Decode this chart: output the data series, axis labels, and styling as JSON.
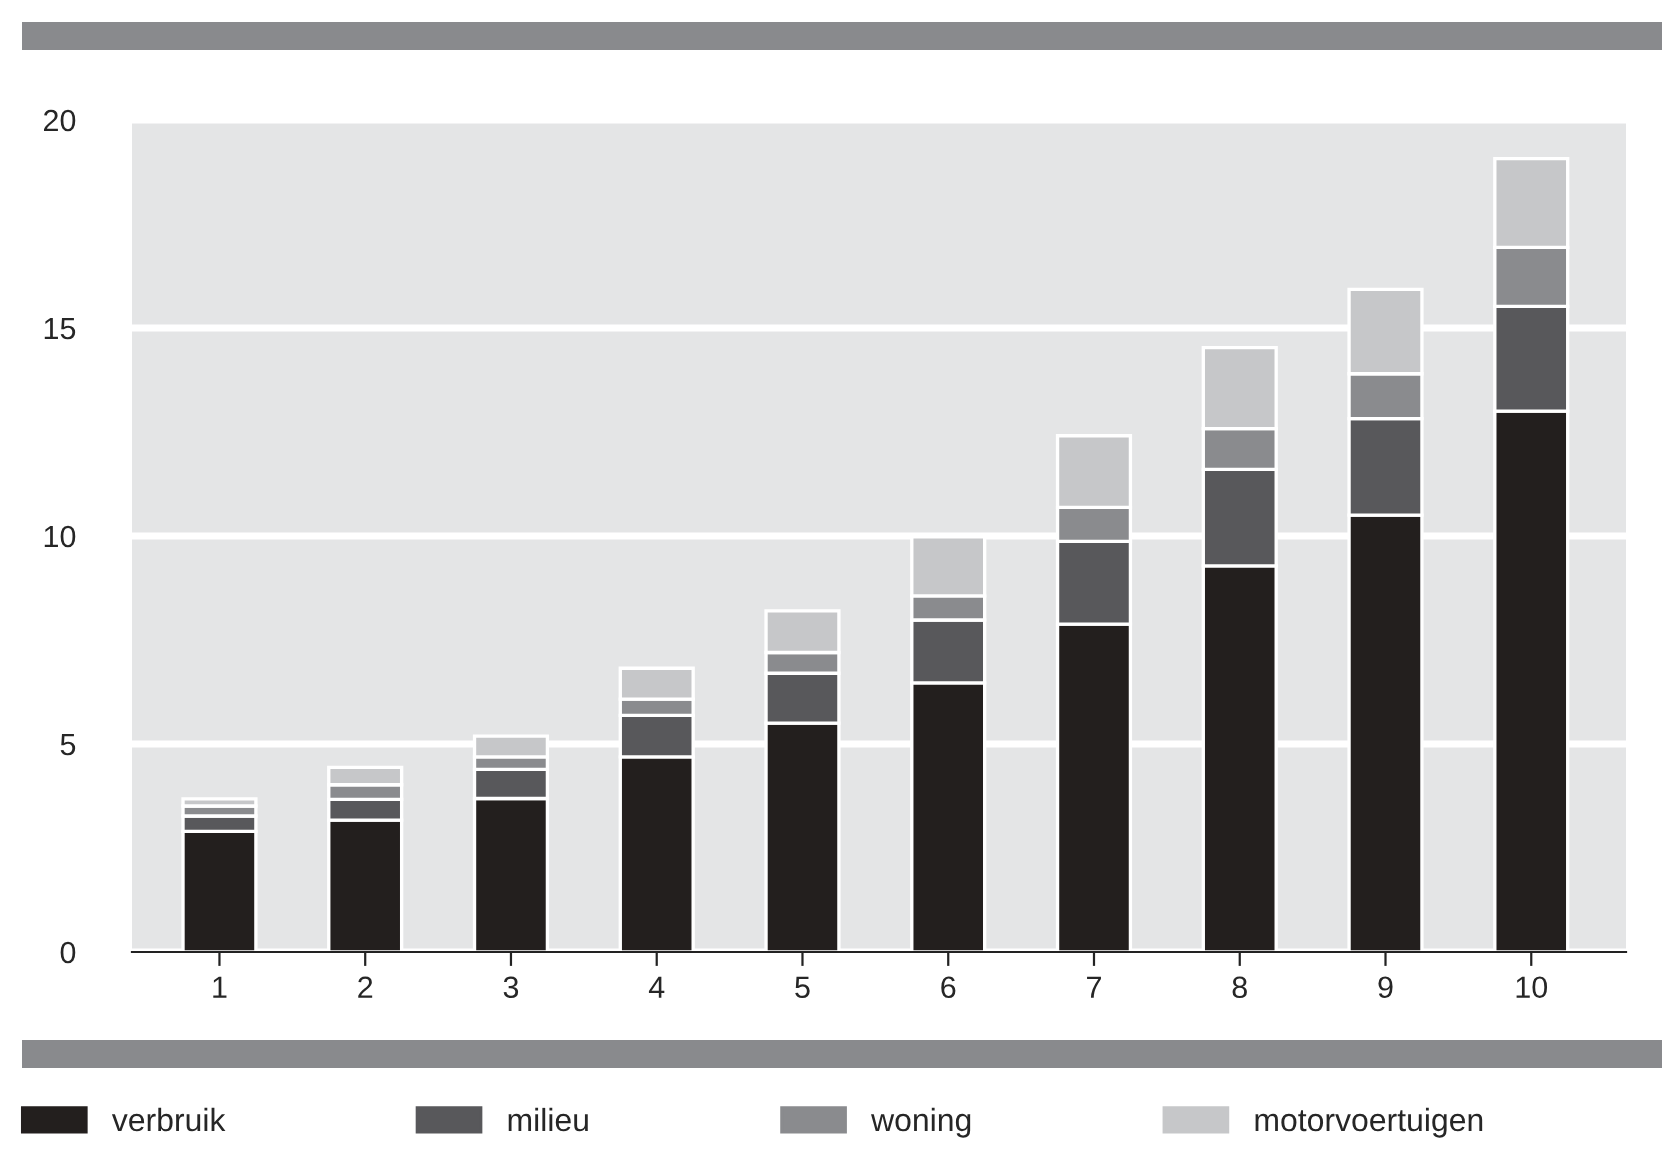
{
  "chart_data": {
    "type": "bar",
    "stacked": true,
    "categories": [
      "1",
      "2",
      "3",
      "4",
      "5",
      "6",
      "7",
      "8",
      "9",
      "10"
    ],
    "series": [
      {
        "name": "verbruik",
        "color": "#231f1e",
        "values": [
          2.9,
          3.17,
          3.69,
          4.69,
          5.5,
          6.47,
          7.88,
          9.28,
          10.5,
          13.0
        ]
      },
      {
        "name": "milieu",
        "color": "#58585b",
        "values": [
          0.37,
          0.5,
          0.7,
          1.0,
          1.2,
          1.51,
          1.99,
          2.32,
          2.32,
          2.52
        ]
      },
      {
        "name": "woning",
        "color": "#8a8b8e",
        "values": [
          0.24,
          0.35,
          0.3,
          0.39,
          0.5,
          0.58,
          0.82,
          0.98,
          1.08,
          1.42
        ]
      },
      {
        "name": "motorvoertuigen",
        "color": "#c6c7c9",
        "values": [
          0.17,
          0.42,
          0.5,
          0.74,
          1.0,
          1.42,
          1.72,
          1.95,
          2.03,
          2.13
        ]
      }
    ],
    "ylim": [
      0,
      20
    ],
    "yticks": [
      0,
      5,
      10,
      15,
      20
    ],
    "grid": "y",
    "legend": "bottom"
  }
}
